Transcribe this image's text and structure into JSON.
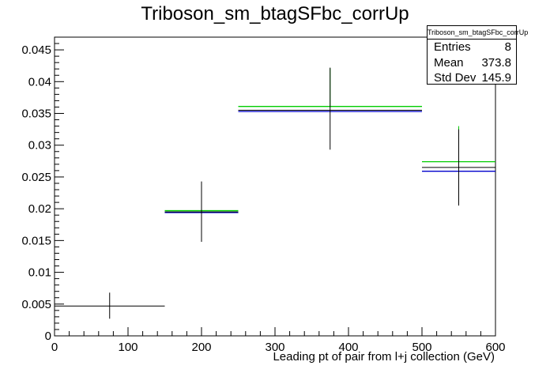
{
  "chart_data": {
    "type": "histogram",
    "title": "Triboson_sm_btagSFbc_corrUp",
    "xlabel": "Leading pt of pair from l+j collection (GeV)",
    "ylabel": "",
    "xlim": [
      0,
      600
    ],
    "ylim": [
      0,
      0.047
    ],
    "x_ticks": [
      0,
      100,
      200,
      300,
      400,
      500,
      600
    ],
    "y_ticks": [
      0,
      0.005,
      0.01,
      0.015,
      0.02,
      0.025,
      0.03,
      0.035,
      0.04,
      0.045
    ],
    "bins": [
      {
        "low": 0,
        "high": 150,
        "center": 75,
        "value": 0.0047,
        "err_low": 0.0027,
        "err_high": 0.0068
      },
      {
        "low": 150,
        "high": 250,
        "center": 200,
        "value": 0.0195,
        "err_low": 0.0148,
        "err_high": 0.0243
      },
      {
        "low": 250,
        "high": 500,
        "center": 375,
        "value": 0.0355,
        "err_low": 0.0293,
        "err_high": 0.0422
      },
      {
        "low": 500,
        "high": 600,
        "center": 550,
        "value": 0.0265,
        "err_low": 0.0205,
        "err_high": 0.0325
      }
    ],
    "variations": [
      {
        "color": "#00cc00",
        "values": [
          null,
          0.0197,
          0.0361,
          0.0274
        ],
        "err_high": [
          null,
          null,
          0.0421,
          0.033
        ]
      },
      {
        "color": "#0000cc",
        "values": [
          null,
          0.0194,
          0.0353,
          0.0259
        ]
      }
    ],
    "stats": {
      "name": "Triboson_sm_btagSFbc_corrUp",
      "entries_label": "Entries",
      "entries": "8",
      "mean_label": "Mean",
      "mean": "373.8",
      "std_label": "Std Dev",
      "std": "145.9"
    }
  }
}
